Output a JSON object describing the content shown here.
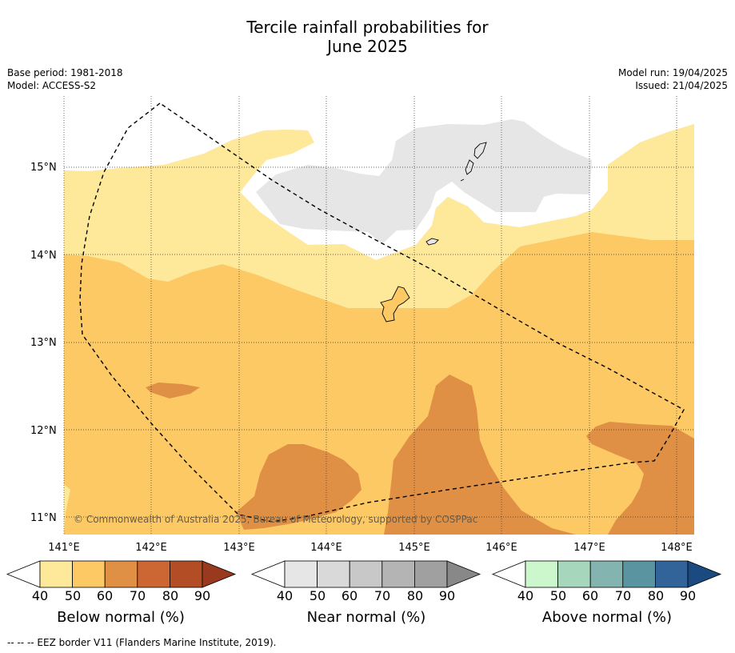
{
  "title_line1": "Tercile rainfall probabilities for",
  "title_line2": "June 2025",
  "meta_left": [
    "Base period: 1981-2018",
    "Model: ACCESS-S2"
  ],
  "meta_right": [
    "Model run: 19/04/2025",
    "Issued: 21/04/2025"
  ],
  "copyright": "© Commonwealth of Australia 2025, Bureau of Meteorology, supported by COSPPac",
  "lat_labels": [
    "15°N",
    "14°N",
    "13°N",
    "12°N",
    "11°N"
  ],
  "lon_labels": [
    "141°E",
    "142°E",
    "143°E",
    "144°E",
    "145°E",
    "146°E",
    "147°E",
    "148°E"
  ],
  "colorbars": [
    {
      "label": "Below normal (%)",
      "ticks": [
        "40",
        "50",
        "60",
        "70",
        "80",
        "90"
      ],
      "colors": [
        "#ffffff",
        "#fee99a",
        "#fcc965",
        "#e09045",
        "#cc6633",
        "#b34d26",
        "#993a1f"
      ]
    },
    {
      "label": "Near normal (%)",
      "ticks": [
        "40",
        "50",
        "60",
        "70",
        "80",
        "90"
      ],
      "colors": [
        "#ffffff",
        "#e6e6e6",
        "#d9d9d9",
        "#c8c8c8",
        "#b4b4b4",
        "#a0a0a0",
        "#888888"
      ]
    },
    {
      "label": "Above normal (%)",
      "ticks": [
        "40",
        "50",
        "60",
        "70",
        "80",
        "90"
      ],
      "colors": [
        "#ffffff",
        "#ccf7cc",
        "#a6d6bc",
        "#84b4b0",
        "#5a94a0",
        "#32649a",
        "#1a4a80"
      ]
    }
  ],
  "footer": "--  --  -- EEZ border V11 (Flanders Marine Institute, 2019)."
}
